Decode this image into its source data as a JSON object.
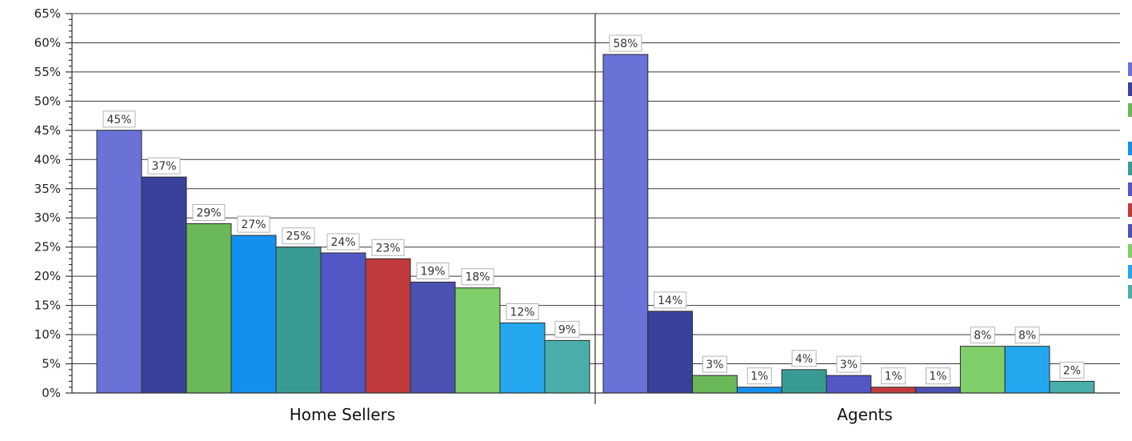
{
  "chart_data": {
    "type": "bar",
    "ylim": [
      0,
      65
    ],
    "ytick_step": 5,
    "ytick_suffix": "%",
    "grid": true,
    "value_suffix": "%",
    "categories": [
      "Home Sellers",
      "Agents"
    ],
    "series": [
      {
        "color": "#6a72d8",
        "values": [
          45,
          58
        ]
      },
      {
        "color": "#39419a",
        "values": [
          37,
          14
        ]
      },
      {
        "color": "#6bb858",
        "values": [
          29,
          3
        ]
      },
      {
        "color": "#1390ee",
        "values": [
          27,
          1
        ]
      },
      {
        "color": "#3a9b94",
        "values": [
          25,
          4
        ]
      },
      {
        "color": "#5357c6",
        "values": [
          24,
          3
        ]
      },
      {
        "color": "#c13a3c",
        "values": [
          23,
          1
        ]
      },
      {
        "color": "#4b52b2",
        "values": [
          19,
          1
        ]
      },
      {
        "color": "#7fcf6b",
        "values": [
          18,
          8
        ]
      },
      {
        "color": "#23a8ef",
        "values": [
          12,
          8
        ]
      },
      {
        "color": "#4aafaa",
        "values": [
          9,
          2
        ]
      }
    ],
    "legend": {
      "placement": "right",
      "swatch_colors": [
        "#6a72d8",
        "#39419a",
        "#6bb858",
        "#1390ee",
        "#3a9b94",
        "#5357c6",
        "#c13a3c",
        "#4b52b2",
        "#7fcf6b",
        "#23a8ef",
        "#4aafaa"
      ]
    }
  }
}
